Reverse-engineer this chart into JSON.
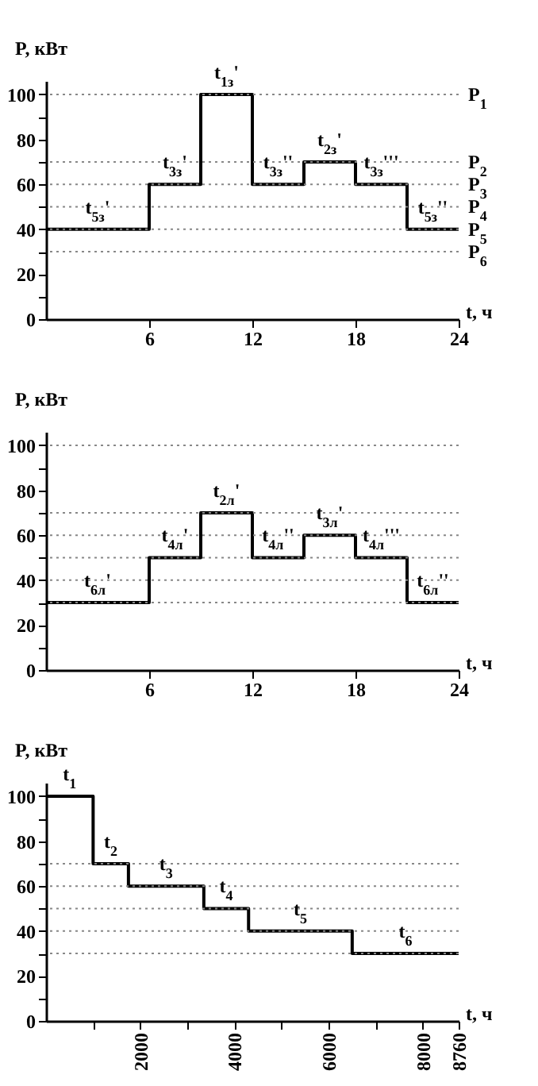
{
  "chart_data": [
    {
      "type": "step",
      "xlabel": "t, ч",
      "ylabel": "P, кВт",
      "color": "#000000",
      "x": [
        0,
        6,
        9,
        12,
        15,
        18,
        21,
        24
      ],
      "values": [
        40,
        60,
        100,
        60,
        70,
        60,
        40,
        40
      ],
      "xlim": [
        0,
        24
      ],
      "xticks": [
        6,
        12,
        18,
        24
      ],
      "ylim": [
        0,
        106
      ],
      "yticks": [
        0,
        {
          "value": 10,
          "label": null
        },
        20,
        {
          "value": 30,
          "label": null
        },
        40,
        {
          "value": 50,
          "label": null
        },
        60,
        {
          "value": 70,
          "label": null
        },
        80,
        {
          "value": 90,
          "label": null
        },
        100
      ],
      "ref_lines": [
        {
          "axis": "y",
          "value": 100,
          "label": "P$_{1}$",
          "color": "#888888",
          "line_style": "dotted"
        },
        {
          "axis": "y",
          "value": 70,
          "label": "P$_{2}$",
          "color": "#888888",
          "line_style": "dotted"
        },
        {
          "axis": "y",
          "value": 60,
          "label": "P$_{3}$",
          "color": "#888888",
          "line_style": "dotted"
        },
        {
          "axis": "y",
          "value": 50,
          "label": "P$_{4}$",
          "color": "#888888",
          "line_style": "dotted"
        },
        {
          "axis": "y",
          "value": 40,
          "label": "P$_{5}$",
          "color": "#888888",
          "line_style": "dotted"
        },
        {
          "axis": "y",
          "value": 30,
          "label": "P$_{6}$",
          "color": "#888888",
          "line_style": "dotted"
        }
      ],
      "annotations": [
        {
          "text": "t$_{5з}$'",
          "x": 3,
          "y": 40
        },
        {
          "text": "t$_{3з}$'",
          "x": 7.5,
          "y": 60
        },
        {
          "text": "t$_{1з}$'",
          "x": 10.5,
          "y": 100
        },
        {
          "text": "t$_{3з}$''",
          "x": 13.5,
          "y": 60
        },
        {
          "text": "t$_{2з}$'",
          "x": 16.5,
          "y": 70
        },
        {
          "text": "t$_{3з}$'''",
          "x": 19.5,
          "y": 60
        },
        {
          "text": "t$_{5з}$''",
          "x": 22.5,
          "y": 40
        }
      ]
    },
    {
      "type": "step",
      "xlabel": "t, ч",
      "ylabel": "P, кВт",
      "color": "#000000",
      "x": [
        0,
        6,
        9,
        12,
        15,
        18,
        21,
        24
      ],
      "values": [
        30,
        50,
        70,
        50,
        60,
        50,
        30,
        30
      ],
      "xlim": [
        0,
        24
      ],
      "xticks": [
        6,
        12,
        18,
        24
      ],
      "ylim": [
        0,
        106
      ],
      "yticks": [
        0,
        {
          "value": 10,
          "label": null
        },
        20,
        {
          "value": 30,
          "label": null
        },
        40,
        {
          "value": 50,
          "label": null
        },
        60,
        {
          "value": 70,
          "label": null
        },
        80,
        {
          "value": 90,
          "label": null
        },
        100
      ],
      "ref_lines": [
        {
          "axis": "y",
          "value": 100,
          "color": "#888888",
          "line_style": "dotted"
        },
        {
          "axis": "y",
          "value": 70,
          "color": "#888888",
          "line_style": "dotted"
        },
        {
          "axis": "y",
          "value": 60,
          "color": "#888888",
          "line_style": "dotted"
        },
        {
          "axis": "y",
          "value": 50,
          "color": "#888888",
          "line_style": "dotted"
        },
        {
          "axis": "y",
          "value": 40,
          "color": "#888888",
          "line_style": "dotted"
        },
        {
          "axis": "y",
          "value": 30,
          "color": "#888888",
          "line_style": "dotted"
        }
      ],
      "annotations": [
        {
          "text": "t$_{6л}$'",
          "x": 3,
          "y": 30
        },
        {
          "text": "t$_{4л}$'",
          "x": 7.5,
          "y": 50
        },
        {
          "text": "t$_{2л}$'",
          "x": 10.5,
          "y": 70
        },
        {
          "text": "t$_{4л}$''",
          "x": 13.5,
          "y": 50
        },
        {
          "text": "t$_{3л}$'",
          "x": 16.5,
          "y": 60
        },
        {
          "text": "t$_{4л}$'''",
          "x": 19.5,
          "y": 50
        },
        {
          "text": "t$_{6л}$''",
          "x": 22.5,
          "y": 30
        }
      ]
    },
    {
      "type": "step",
      "xlabel": "t, ч",
      "ylabel": "P, кВт",
      "color": "#000000",
      "x": [
        0,
        1000,
        1750,
        3350,
        4300,
        6500,
        8760
      ],
      "values": [
        100,
        70,
        60,
        50,
        40,
        30,
        30
      ],
      "xlim": [
        0,
        8760
      ],
      "xticks": [
        {
          "value": 1000,
          "label": null
        },
        2000,
        {
          "value": 3000,
          "label": null
        },
        4000,
        {
          "value": 5000,
          "label": null
        },
        6000,
        {
          "value": 7000,
          "label": null
        },
        8000,
        8760
      ],
      "ylim": [
        0,
        106
      ],
      "yticks": [
        0,
        {
          "value": 10,
          "label": null
        },
        20,
        {
          "value": 30,
          "label": null
        },
        40,
        {
          "value": 50,
          "label": null
        },
        60,
        {
          "value": 70,
          "label": null
        },
        80,
        {
          "value": 90,
          "label": null
        },
        100
      ],
      "ref_lines": [
        {
          "axis": "y",
          "value": 70,
          "color": "#888888",
          "line_style": "dotted"
        },
        {
          "axis": "y",
          "value": 60,
          "color": "#888888",
          "line_style": "dotted"
        },
        {
          "axis": "y",
          "value": 50,
          "color": "#888888",
          "line_style": "dotted"
        },
        {
          "axis": "y",
          "value": 40,
          "color": "#888888",
          "line_style": "dotted"
        },
        {
          "axis": "y",
          "value": 30,
          "color": "#888888",
          "line_style": "dotted"
        }
      ],
      "annotations": [
        {
          "text": "t$_{1}$",
          "x": 500,
          "y": 100
        },
        {
          "text": "t$_{2}$",
          "x": 1375,
          "y": 70
        },
        {
          "text": "t$_{3}$",
          "x": 2550,
          "y": 60
        },
        {
          "text": "t$_{4}$",
          "x": 3825,
          "y": 50
        },
        {
          "text": "t$_{5}$",
          "x": 5400,
          "y": 40
        },
        {
          "text": "t$_{6}$",
          "x": 7630,
          "y": 30
        }
      ]
    }
  ]
}
